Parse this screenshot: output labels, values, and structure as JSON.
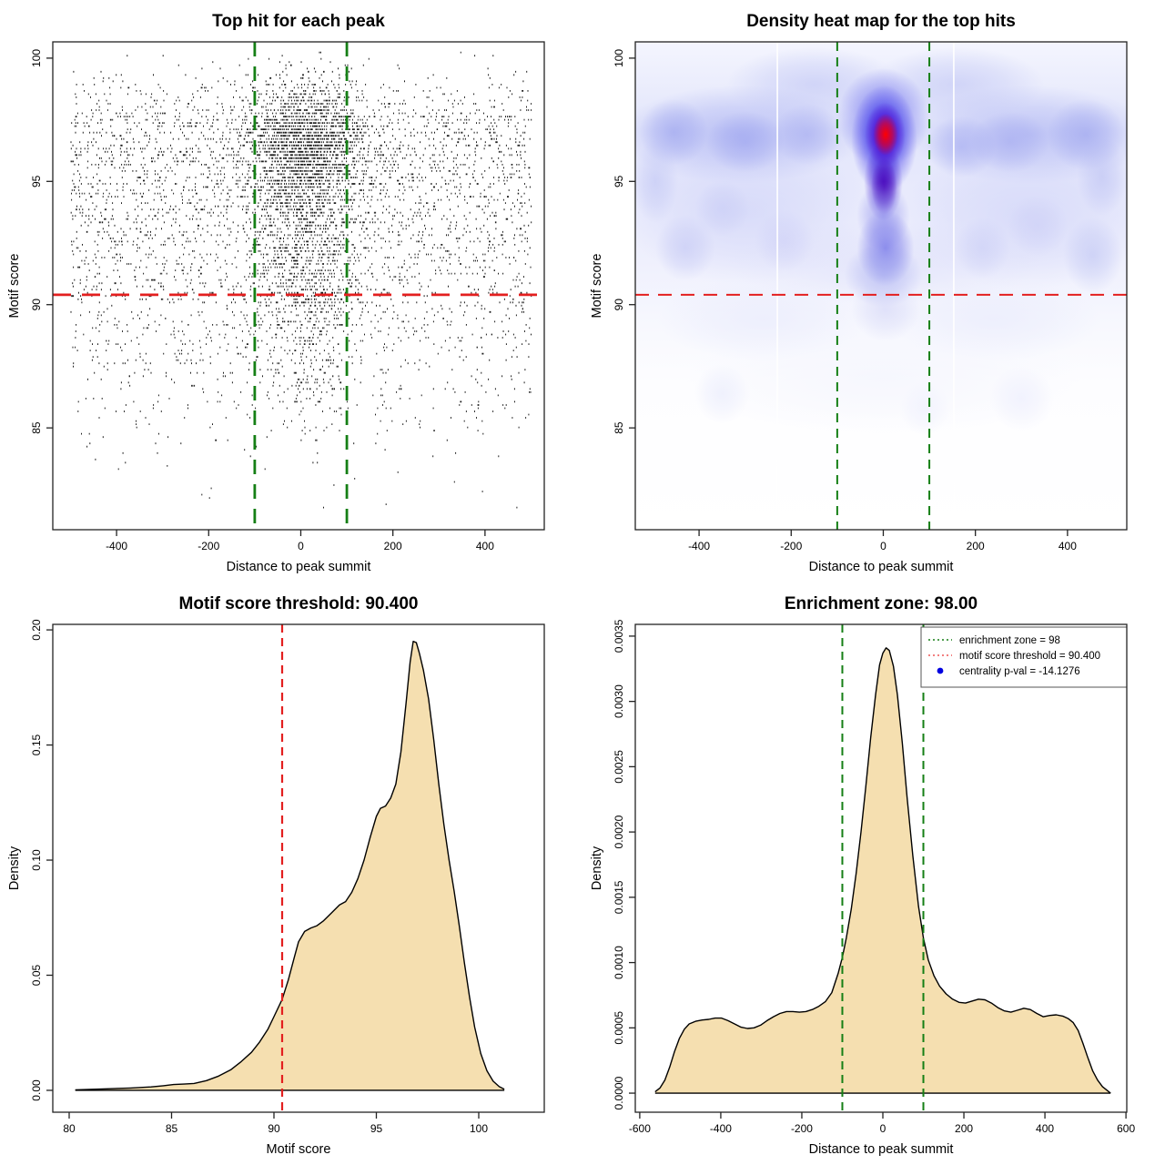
{
  "app": {
    "background": "#ffffff"
  },
  "colors": {
    "red_line": "#e31f1f",
    "green_line": "#157f15",
    "point_color": "#0a0a0a",
    "curve_fill": "#f5dfb0",
    "curve_stroke": "#000000",
    "legend_blue": "#0000e0",
    "legend_red": "#ee5555",
    "axis": "#222222"
  },
  "chart_data": [
    {
      "type": "scatter",
      "title": "Top hit for each peak",
      "xlabel": "Distance to peak summit",
      "ylabel": "Motif score",
      "xlim": [
        -538.5,
        528.7
      ],
      "ylim": [
        80.87,
        100.66
      ],
      "xticks": [
        -400,
        -200,
        0,
        200,
        400
      ],
      "xtick_labels": [
        "-400",
        "-200",
        "0",
        "200",
        "400"
      ],
      "yticks": [
        85,
        90,
        95,
        100
      ],
      "ytick_labels": [
        "85",
        "90",
        "95",
        "100"
      ],
      "hline": {
        "y": 90.4,
        "color": "#e31f1f",
        "width": 2.8,
        "dash": "20 12"
      },
      "vlines": [
        {
          "x": -100,
          "color": "#157f15",
          "width": 2.8,
          "dash": "16 11"
        },
        {
          "x": 100,
          "color": "#157f15",
          "width": 2.8,
          "dash": "16 11"
        }
      ],
      "simulation": {
        "seed": 20240813,
        "n": 6800,
        "frac_central": 0.44,
        "central_x": {
          "mean": 8,
          "sd": 62
        },
        "background_x": {
          "min": -500,
          "max": 500
        },
        "y_clip": [
          81.4,
          100.35
        ],
        "y_quantum": 0.13,
        "score_mixture_background": [
          [
            96.9,
            1.25,
            0.335
          ],
          [
            94.7,
            1.3,
            0.2
          ],
          [
            92.7,
            1.35,
            0.17
          ],
          [
            90.8,
            1.4,
            0.135
          ],
          [
            88.7,
            1.6,
            0.115
          ],
          [
            86.4,
            1.25,
            0.035
          ],
          [
            84.0,
            1.3,
            0.01
          ]
        ],
        "score_mixture_central": [
          [
            96.9,
            1.15,
            0.5
          ],
          [
            94.8,
            1.2,
            0.205
          ],
          [
            92.7,
            1.3,
            0.135
          ],
          [
            90.9,
            1.35,
            0.085
          ],
          [
            88.7,
            1.5,
            0.055
          ],
          [
            86.5,
            1.2,
            0.018
          ],
          [
            84.0,
            1.3,
            0.002
          ]
        ]
      }
    },
    {
      "type": "heatmap",
      "title": "Density heat map for the top hits",
      "xlabel": "Distance to peak summit",
      "ylabel": "Motif score",
      "xlim": [
        -538.5,
        528.7
      ],
      "ylim": [
        80.87,
        100.66
      ],
      "xticks": [
        -400,
        -200,
        0,
        200,
        400
      ],
      "xtick_labels": [
        "-400",
        "-200",
        "0",
        "200",
        "400"
      ],
      "yticks": [
        85,
        90,
        95,
        100
      ],
      "ytick_labels": [
        "85",
        "90",
        "95",
        "100"
      ],
      "hline": {
        "y": 90.4,
        "color": "#e31f1f",
        "width": 2.1,
        "dash": "15 10"
      },
      "vlines": [
        {
          "x": -100,
          "color": "#157f15",
          "width": 2.0,
          "dash": "10 7"
        },
        {
          "x": 100,
          "color": "#157f15",
          "width": 2.0,
          "dash": "10 7"
        }
      ],
      "hotspot": {
        "x": 5,
        "y": 96.9,
        "peak_color": "#ff0000"
      },
      "white_artifact_lines_x": [
        -230,
        153
      ],
      "base_gradient": [
        [
          0,
          "#f4f5fe"
        ],
        [
          0.18,
          "#e2e5fb"
        ],
        [
          0.28,
          "#e7e9fc"
        ],
        [
          0.45,
          "#eff0fd"
        ],
        [
          0.58,
          "#f7f8fe"
        ],
        [
          0.7,
          "#fdfdff"
        ],
        [
          1,
          "#ffffff"
        ]
      ],
      "blobs": [
        [
          -310,
          96.9,
          265,
          2.0,
          "#9aa2ef",
          0.55
        ],
        [
          320,
          96.9,
          265,
          2.0,
          "#9aa2ef",
          0.5
        ],
        [
          -300,
          93.8,
          270,
          3.0,
          "#ccd0f7",
          0.6
        ],
        [
          310,
          93.6,
          270,
          3.0,
          "#ccd0f7",
          0.6
        ],
        [
          -150,
          98.95,
          190,
          1.5,
          "#b6bcf3",
          0.5
        ],
        [
          160,
          98.95,
          190,
          1.5,
          "#b6bcf3",
          0.5
        ],
        [
          0,
          91.7,
          340,
          1.7,
          "#dadcf9",
          0.55
        ],
        [
          -260,
          89.4,
          230,
          1.7,
          "#e8eafc",
          0.65
        ],
        [
          240,
          89.4,
          230,
          1.7,
          "#e8eafc",
          0.65
        ],
        [
          0,
          87.0,
          430,
          2.2,
          "#f2f3fd",
          0.6
        ],
        [
          -455,
          97.0,
          75,
          1.35,
          "#8f97ec",
          0.5
        ],
        [
          -300,
          96.6,
          85,
          1.25,
          "#959cee",
          0.5
        ],
        [
          -165,
          96.9,
          75,
          1.25,
          "#9aa0ee",
          0.45
        ],
        [
          170,
          96.4,
          75,
          1.25,
          "#959cee",
          0.45
        ],
        [
          275,
          96.6,
          85,
          1.25,
          "#9aa0ee",
          0.45
        ],
        [
          440,
          96.9,
          85,
          1.45,
          "#8f97ec",
          0.5
        ],
        [
          -430,
          92.3,
          65,
          1.35,
          "#c2c6f4",
          0.6
        ],
        [
          -350,
          93.9,
          60,
          1.15,
          "#c6caf5",
          0.55
        ],
        [
          -215,
          92.6,
          65,
          1.25,
          "#caccf6",
          0.5
        ],
        [
          215,
          92.3,
          60,
          1.25,
          "#c6caf5",
          0.5
        ],
        [
          335,
          93.2,
          65,
          1.25,
          "#caccf6",
          0.5
        ],
        [
          455,
          92.0,
          65,
          1.55,
          "#bec4f3",
          0.6
        ],
        [
          475,
          95.2,
          55,
          1.6,
          "#b2b8f1",
          0.5
        ],
        [
          -495,
          95.0,
          50,
          1.7,
          "#b8bef2",
          0.5
        ],
        [
          0,
          97.6,
          100,
          2.0,
          "#5b5bec",
          0.7
        ],
        [
          2,
          96.7,
          72,
          2.2,
          "#2a20e8",
          0.85
        ],
        [
          0,
          95.0,
          42,
          1.6,
          "#3a10d0",
          0.8
        ],
        [
          2,
          94.8,
          28,
          1.15,
          "#4a00b4",
          0.75
        ],
        [
          4,
          96.9,
          44,
          1.3,
          "#5500cc",
          0.95
        ],
        [
          5,
          96.9,
          27,
          0.85,
          "#ff0000",
          1
        ],
        [
          5,
          92.3,
          62,
          1.55,
          "#5c5ce4",
          0.65
        ],
        [
          0,
          91.2,
          85,
          1.3,
          "#9aa0ee",
          0.5
        ],
        [
          0,
          93.6,
          58,
          1.4,
          "#8080ea",
          0.55
        ],
        [
          5,
          89.8,
          75,
          1.3,
          "#caccf5",
          0.5
        ],
        [
          -350,
          86.4,
          60,
          1.2,
          "#eceefc",
          0.8
        ],
        [
          300,
          86.2,
          70,
          1.3,
          "#eff0fd",
          0.8
        ],
        [
          90,
          85.8,
          55,
          1.1,
          "#f1f2fd",
          0.8
        ]
      ]
    },
    {
      "type": "density",
      "title": "Motif score threshold: 90.400",
      "xlabel": "Motif score",
      "ylabel": "Density",
      "xlim": [
        79.2,
        103.2
      ],
      "ylim": [
        -0.0095,
        0.2024
      ],
      "xticks": [
        80,
        85,
        90,
        95,
        100
      ],
      "xtick_labels": [
        "80",
        "85",
        "90",
        "95",
        "100"
      ],
      "yticks": [
        0,
        0.05,
        0.1,
        0.15,
        0.2
      ],
      "ytick_labels": [
        "0.00",
        "0.05",
        "0.10",
        "0.15",
        "0.20"
      ],
      "vlines": [
        {
          "x": 90.4,
          "color": "#e31f1f",
          "width": 2.2,
          "dash": "9 6"
        }
      ],
      "curve": [
        [
          80.3,
          0.0002
        ],
        [
          81,
          0.0004
        ],
        [
          82,
          0.0007
        ],
        [
          83,
          0.001
        ],
        [
          84,
          0.0015
        ],
        [
          84.6,
          0.002
        ],
        [
          85.1,
          0.0025
        ],
        [
          85.6,
          0.0027
        ],
        [
          86.1,
          0.003
        ],
        [
          86.7,
          0.0042
        ],
        [
          87.3,
          0.0062
        ],
        [
          87.9,
          0.009
        ],
        [
          88.4,
          0.0125
        ],
        [
          88.9,
          0.0165
        ],
        [
          89.3,
          0.021
        ],
        [
          89.7,
          0.0265
        ],
        [
          90,
          0.032
        ],
        [
          90.4,
          0.0395
        ],
        [
          90.7,
          0.048
        ],
        [
          91,
          0.058
        ],
        [
          91.2,
          0.0645
        ],
        [
          91.5,
          0.069
        ],
        [
          91.8,
          0.0705
        ],
        [
          92.1,
          0.0715
        ],
        [
          92.4,
          0.0735
        ],
        [
          92.8,
          0.077
        ],
        [
          93.2,
          0.0805
        ],
        [
          93.5,
          0.082
        ],
        [
          93.8,
          0.086
        ],
        [
          94.1,
          0.092
        ],
        [
          94.4,
          0.1
        ],
        [
          94.7,
          0.11
        ],
        [
          95,
          0.119
        ],
        [
          95.2,
          0.1225
        ],
        [
          95.45,
          0.1235
        ],
        [
          95.7,
          0.127
        ],
        [
          95.95,
          0.133
        ],
        [
          96.2,
          0.147
        ],
        [
          96.45,
          0.168
        ],
        [
          96.65,
          0.186
        ],
        [
          96.8,
          0.195
        ],
        [
          96.95,
          0.1945
        ],
        [
          97.1,
          0.19
        ],
        [
          97.3,
          0.1825
        ],
        [
          97.55,
          0.17
        ],
        [
          97.8,
          0.1525
        ],
        [
          98.05,
          0.133
        ],
        [
          98.3,
          0.1155
        ],
        [
          98.55,
          0.1
        ],
        [
          98.8,
          0.0865
        ],
        [
          99.05,
          0.0715
        ],
        [
          99.3,
          0.0555
        ],
        [
          99.55,
          0.0405
        ],
        [
          99.8,
          0.0275
        ],
        [
          100.1,
          0.016
        ],
        [
          100.4,
          0.0085
        ],
        [
          100.7,
          0.004
        ],
        [
          101,
          0.0016
        ],
        [
          101.25,
          0.0005
        ]
      ]
    },
    {
      "type": "density",
      "title": "Enrichment zone: 98.00",
      "xlabel": "Distance to peak summit",
      "ylabel": "Density",
      "xlim": [
        -611,
        602
      ],
      "ylim": [
        -0.000146,
        0.00359
      ],
      "xticks": [
        -600,
        -400,
        -200,
        0,
        200,
        400,
        600
      ],
      "xtick_labels": [
        "-600",
        "-400",
        "-200",
        "0",
        "200",
        "400",
        "600"
      ],
      "yticks": [
        0,
        0.0005,
        0.001,
        0.0015,
        0.002,
        0.0025,
        0.003,
        0.0035
      ],
      "ytick_labels": [
        "0.0000",
        "0.0005",
        "0.0010",
        "0.0015",
        "0.0020",
        "0.0025",
        "0.0030",
        "0.0035"
      ],
      "vlines": [
        {
          "x": -100,
          "color": "#157f15",
          "width": 2.0,
          "dash": "9 6"
        },
        {
          "x": 100,
          "color": "#157f15",
          "width": 2.0,
          "dash": "9 6"
        }
      ],
      "curve": [
        [
          -562,
          1e-05
        ],
        [
          -550,
          4e-05
        ],
        [
          -538,
          0.0001
        ],
        [
          -526,
          0.0002
        ],
        [
          -514,
          0.00032
        ],
        [
          -502,
          0.00042
        ],
        [
          -490,
          0.00049
        ],
        [
          -478,
          0.00053
        ],
        [
          -462,
          0.00055
        ],
        [
          -446,
          0.00056
        ],
        [
          -430,
          0.000565
        ],
        [
          -414,
          0.000575
        ],
        [
          -398,
          0.000575
        ],
        [
          -382,
          0.000555
        ],
        [
          -366,
          0.00053
        ],
        [
          -350,
          0.000505
        ],
        [
          -334,
          0.000495
        ],
        [
          -318,
          0.0005
        ],
        [
          -302,
          0.00052
        ],
        [
          -286,
          0.000555
        ],
        [
          -270,
          0.000585
        ],
        [
          -254,
          0.00061
        ],
        [
          -238,
          0.000625
        ],
        [
          -222,
          0.000625
        ],
        [
          -206,
          0.00062
        ],
        [
          -190,
          0.000625
        ],
        [
          -174,
          0.00064
        ],
        [
          -158,
          0.000665
        ],
        [
          -142,
          0.0007
        ],
        [
          -126,
          0.00077
        ],
        [
          -110,
          0.00092
        ],
        [
          -100,
          0.00104
        ],
        [
          -90,
          0.00119
        ],
        [
          -78,
          0.00141
        ],
        [
          -66,
          0.00168
        ],
        [
          -54,
          0.002
        ],
        [
          -42,
          0.00235
        ],
        [
          -30,
          0.00272
        ],
        [
          -18,
          0.00305
        ],
        [
          -8,
          0.00328
        ],
        [
          0,
          0.00337
        ],
        [
          8,
          0.00341
        ],
        [
          16,
          0.00339
        ],
        [
          26,
          0.00327
        ],
        [
          36,
          0.00305
        ],
        [
          48,
          0.00268
        ],
        [
          60,
          0.00226
        ],
        [
          74,
          0.00182
        ],
        [
          88,
          0.00143
        ],
        [
          100,
          0.00119
        ],
        [
          112,
          0.00102
        ],
        [
          126,
          0.0009
        ],
        [
          140,
          0.00082
        ],
        [
          156,
          0.00076
        ],
        [
          172,
          0.00072
        ],
        [
          188,
          0.000695
        ],
        [
          204,
          0.00069
        ],
        [
          220,
          0.000705
        ],
        [
          236,
          0.00072
        ],
        [
          252,
          0.000715
        ],
        [
          268,
          0.00069
        ],
        [
          284,
          0.000655
        ],
        [
          300,
          0.00063
        ],
        [
          316,
          0.00062
        ],
        [
          332,
          0.000635
        ],
        [
          348,
          0.00065
        ],
        [
          364,
          0.00064
        ],
        [
          380,
          0.00061
        ],
        [
          396,
          0.000585
        ],
        [
          412,
          0.000595
        ],
        [
          428,
          0.0006
        ],
        [
          444,
          0.00059
        ],
        [
          458,
          0.00057
        ],
        [
          470,
          0.00054
        ],
        [
          482,
          0.00048
        ],
        [
          494,
          0.00038
        ],
        [
          506,
          0.00027
        ],
        [
          518,
          0.00017
        ],
        [
          530,
          0.0001
        ],
        [
          542,
          5e-05
        ],
        [
          554,
          2e-05
        ],
        [
          562,
          0
        ]
      ],
      "legend": {
        "items": [
          {
            "label": "enrichment zone = 98",
            "swatch": "dash",
            "color": "#157f15"
          },
          {
            "label": "motif score threshold = 90.400",
            "swatch": "dash",
            "color": "#ee5555"
          },
          {
            "label": "centrality p-val = -14.1276",
            "swatch": "dot",
            "color": "#0000e0"
          }
        ]
      }
    }
  ]
}
